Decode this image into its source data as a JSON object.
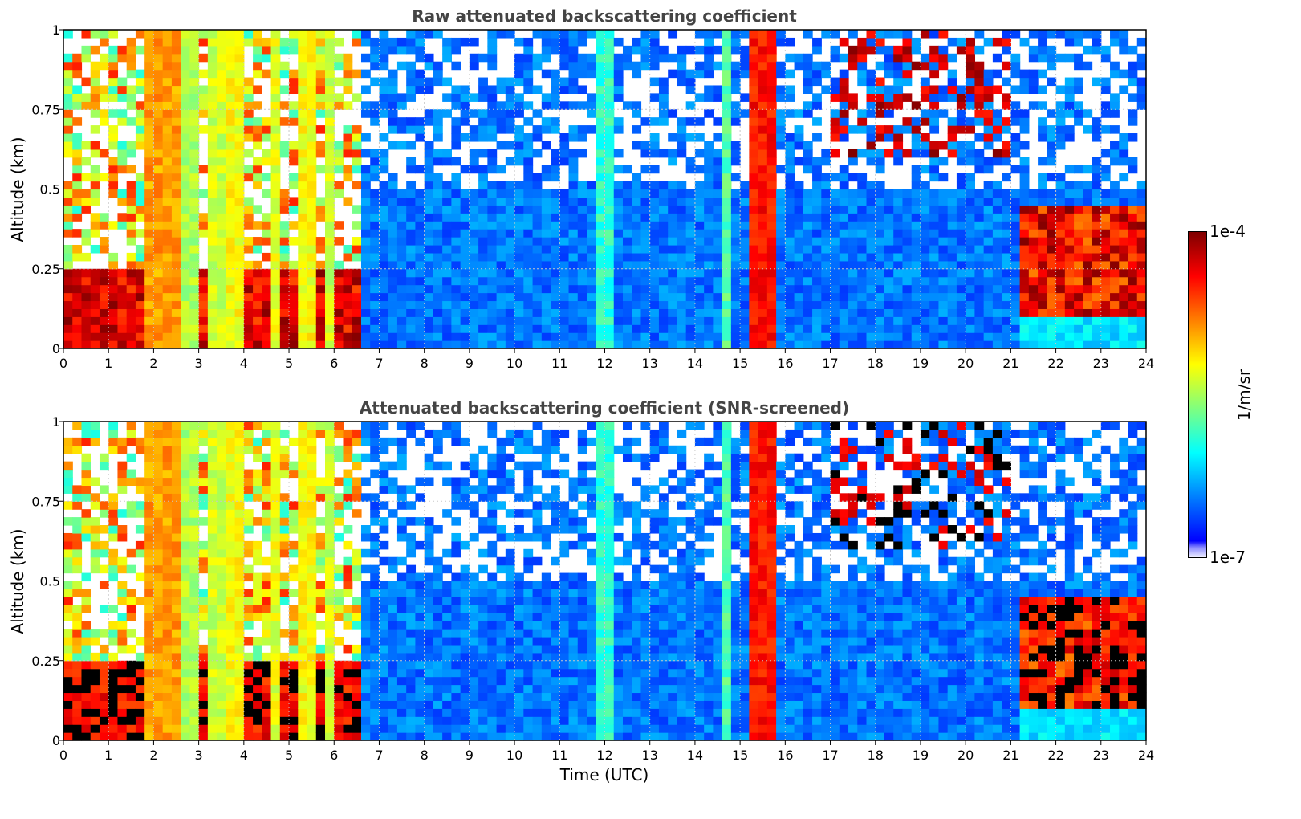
{
  "chart_data": [
    {
      "type": "heatmap",
      "title": "Raw attenuated backscattering coefficient",
      "xlabel": "",
      "ylabel": "Altitude (km)",
      "xlim": [
        0,
        24
      ],
      "ylim": [
        0,
        1
      ],
      "x_ticks": [
        "0",
        "1",
        "2",
        "3",
        "4",
        "5",
        "6",
        "7",
        "8",
        "9",
        "10",
        "11",
        "12",
        "13",
        "14",
        "15",
        "16",
        "17",
        "18",
        "19",
        "20",
        "21",
        "22",
        "23",
        "24"
      ],
      "y_ticks": [
        "0",
        "0.25",
        "0.5",
        "0.75",
        "1"
      ],
      "grid": true,
      "screened": false
    },
    {
      "type": "heatmap",
      "title": "Attenuated backscattering coefficient (SNR-screened)",
      "xlabel": "Time (UTC)",
      "ylabel": "Altitude (km)",
      "xlim": [
        0,
        24
      ],
      "ylim": [
        0,
        1
      ],
      "x_ticks": [
        "0",
        "1",
        "2",
        "3",
        "4",
        "5",
        "6",
        "7",
        "8",
        "9",
        "10",
        "11",
        "12",
        "13",
        "14",
        "15",
        "16",
        "17",
        "18",
        "19",
        "20",
        "21",
        "22",
        "23",
        "24"
      ],
      "y_ticks": [
        "0",
        "0.25",
        "0.5",
        "0.75",
        "1"
      ],
      "grid": true,
      "screened": true
    }
  ],
  "colorbar": {
    "label": "1/m/sr",
    "max_label": "1e-4",
    "min_label": "1e-7",
    "colormap": [
      "#00007f",
      "#0000ff",
      "#007fff",
      "#00ffff",
      "#7fff7f",
      "#ffff00",
      "#ff7f00",
      "#ff0000",
      "#7f0000"
    ]
  },
  "figure": {
    "x_label": "Time (UTC)"
  }
}
